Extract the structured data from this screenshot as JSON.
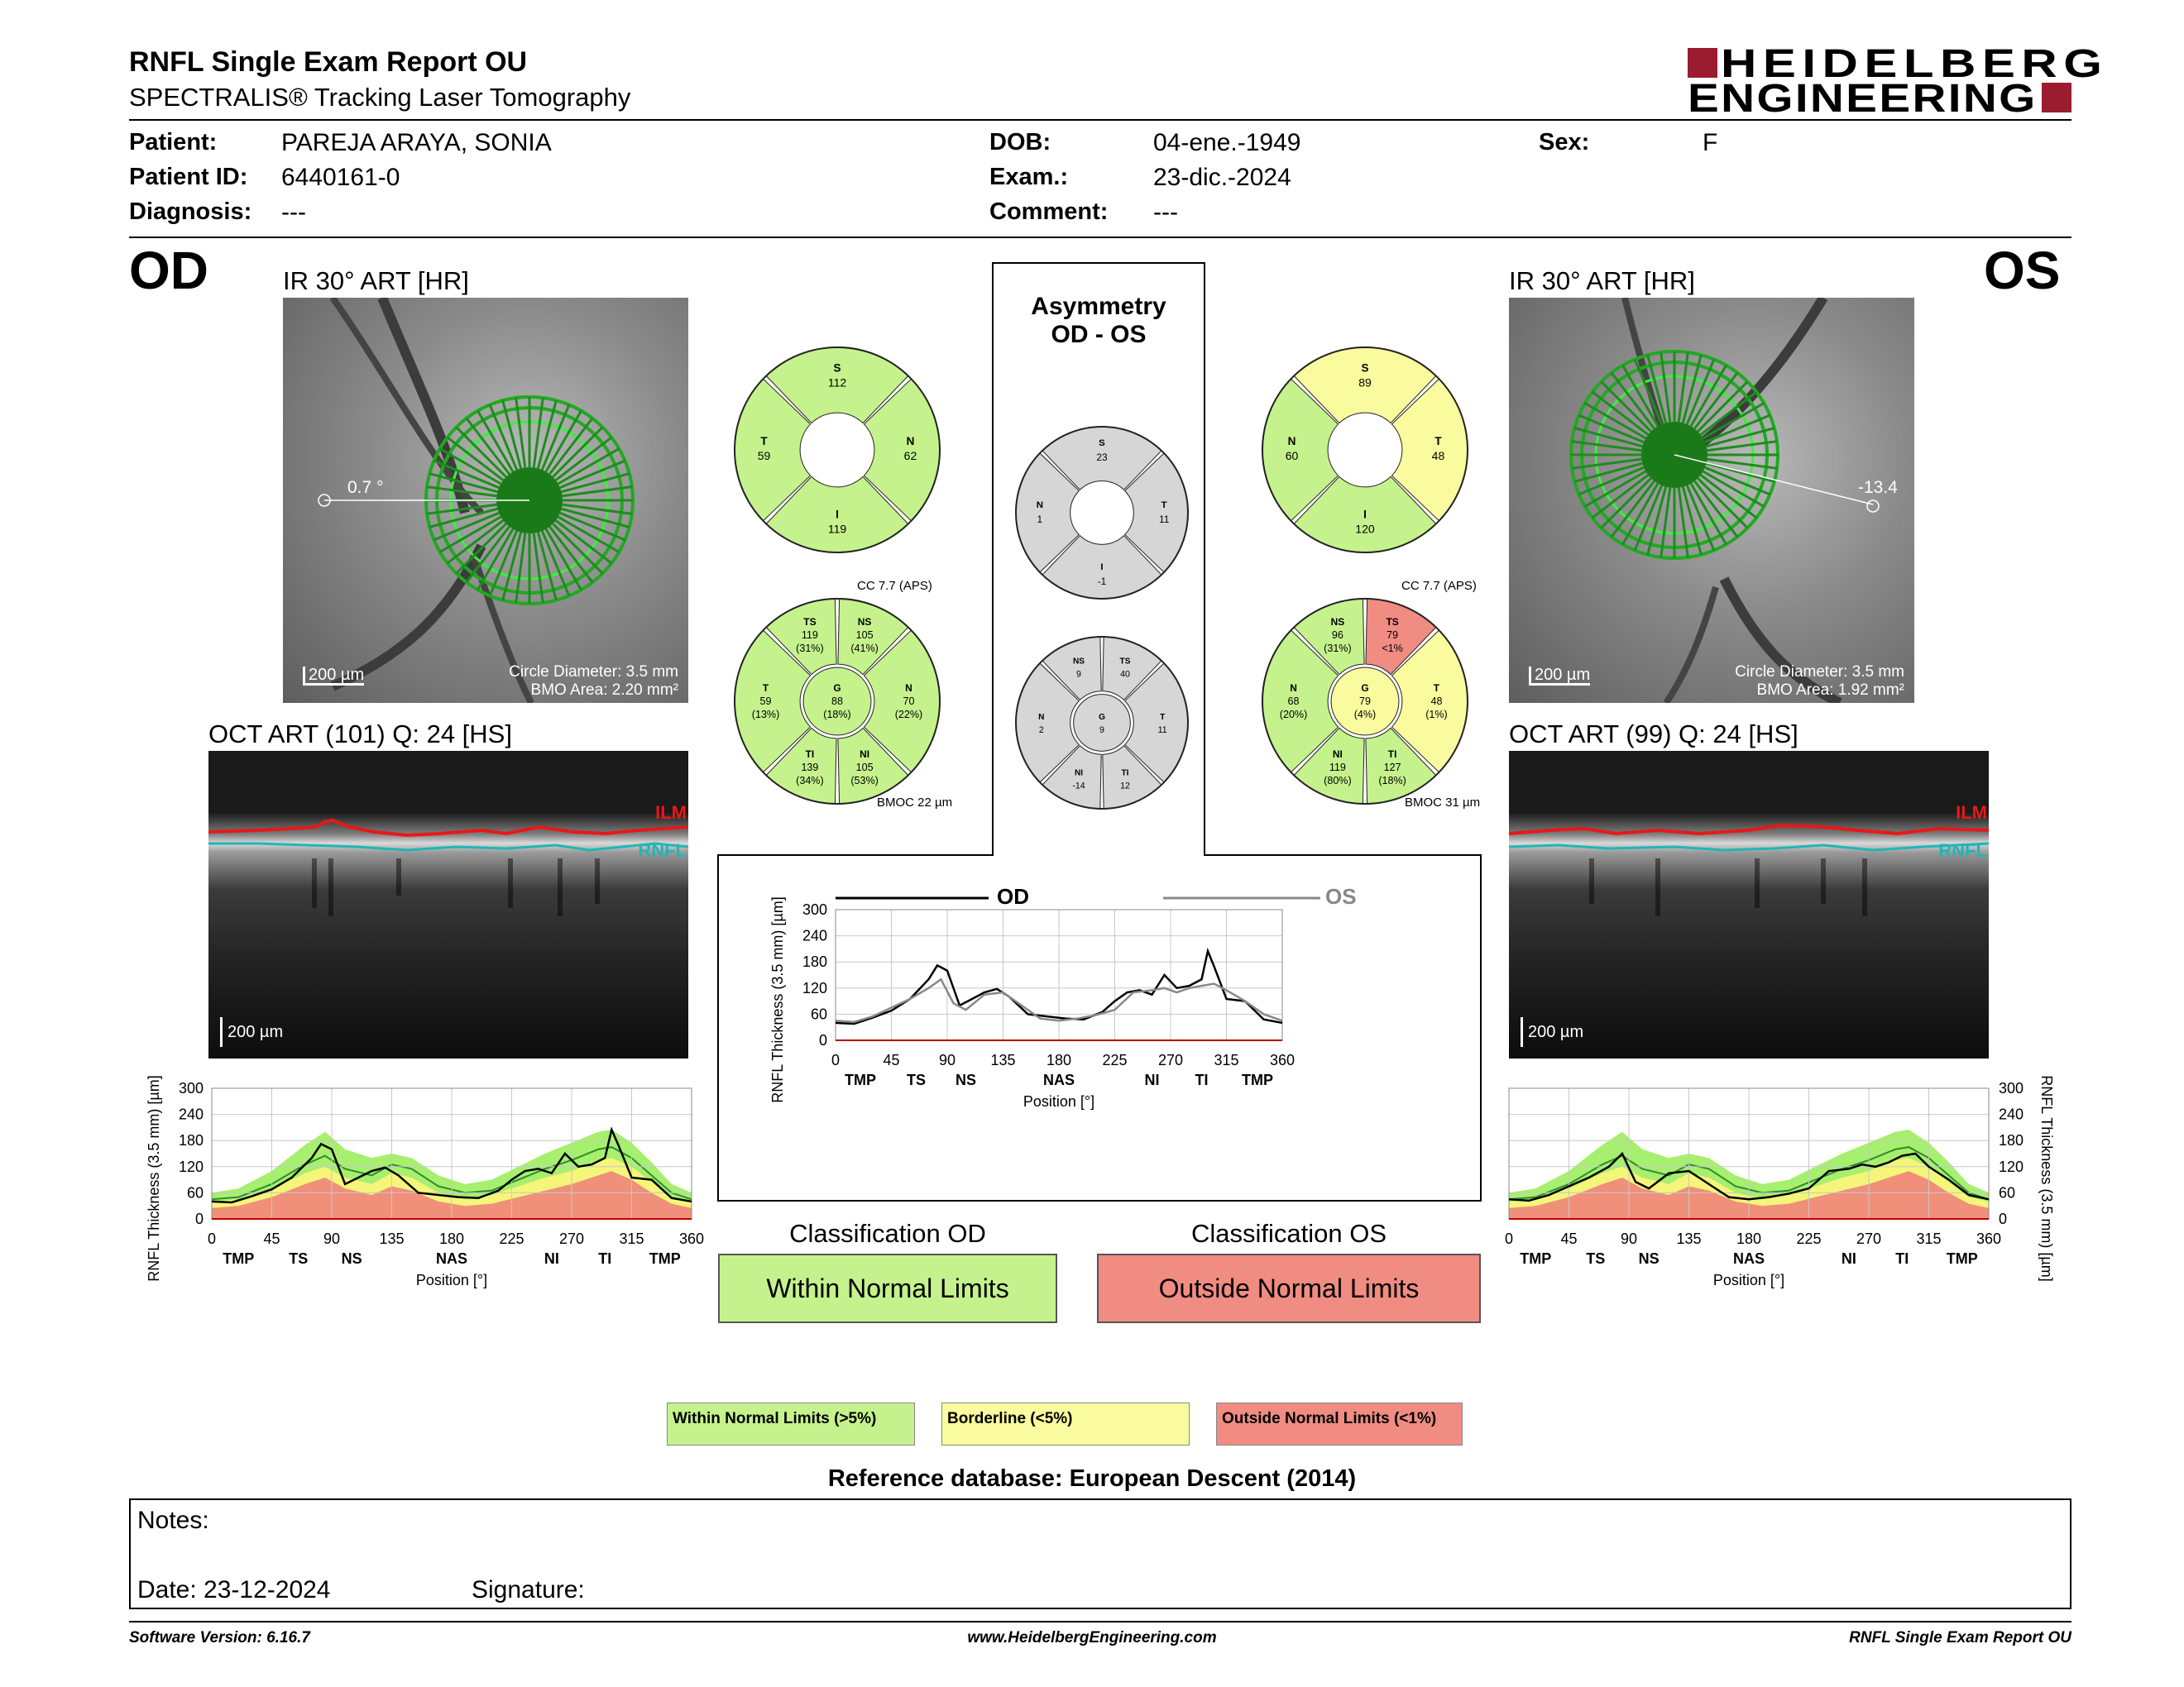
{
  "header": {
    "title": "RNFL Single Exam Report OU",
    "subtitle": "SPECTRALIS® Tracking Laser Tomography",
    "logo_line1": "HEIDELBERG",
    "logo_line2": "ENGINEERING"
  },
  "patient": {
    "patient_label": "Patient:",
    "patient_value": "PAREJA ARAYA, SONIA",
    "id_label": "Patient ID:",
    "id_value": "6440161-0",
    "diagnosis_label": "Diagnosis:",
    "diagnosis_value": "---",
    "dob_label": "DOB:",
    "dob_value": "04-ene.-1949",
    "exam_label": "Exam.:",
    "exam_value": "23-dic.-2024",
    "comment_label": "Comment:",
    "comment_value": "---",
    "sex_label": "Sex:",
    "sex_value": "F"
  },
  "od": {
    "eye_label": "OD",
    "ir_title": "IR 30° ART [HR]",
    "angle": "0.7 °",
    "scale": "200 µm",
    "circle_diameter": "Circle Diameter: 3.5 mm",
    "bmo_area": "BMO Area: 2.20 mm²",
    "oct_title": "OCT ART (101) Q: 24 [HS]",
    "oct_scale": "200 µm",
    "ilm": "ILM",
    "rnfl": "RNFL",
    "classification_title": "Classification OD",
    "classification": "Within Normal Limits",
    "classification_color": "#c5f28c",
    "wheel6_cc": "CC 7.7 (APS)",
    "wheel6_bmoc": "BMOC 22 µm",
    "wheel4": {
      "S": {
        "label": "S",
        "value": "112",
        "color": "#c5f28c"
      },
      "N": {
        "label": "N",
        "value": "62",
        "color": "#c5f28c"
      },
      "I": {
        "label": "I",
        "value": "119",
        "color": "#c5f28c"
      },
      "T": {
        "label": "T",
        "value": "59",
        "color": "#c5f28c"
      }
    },
    "wheel6": {
      "TS": {
        "label": "TS",
        "value": "119",
        "pct": "(31%)",
        "color": "#c5f28c"
      },
      "NS": {
        "label": "NS",
        "value": "105",
        "pct": "(41%)",
        "color": "#c5f28c"
      },
      "N": {
        "label": "N",
        "value": "70",
        "pct": "(22%)",
        "color": "#c5f28c"
      },
      "NI": {
        "label": "NI",
        "value": "105",
        "pct": "(53%)",
        "color": "#c5f28c"
      },
      "TI": {
        "label": "TI",
        "value": "139",
        "pct": "(34%)",
        "color": "#c5f28c"
      },
      "T": {
        "label": "T",
        "value": "59",
        "pct": "(13%)",
        "color": "#c5f28c"
      },
      "G": {
        "label": "G",
        "value": "88",
        "pct": "(18%)",
        "color": "#c5f28c"
      }
    }
  },
  "os": {
    "eye_label": "OS",
    "ir_title": "IR 30° ART [HR]",
    "angle": "-13.4",
    "scale": "200 µm",
    "circle_diameter": "Circle Diameter: 3.5 mm",
    "bmo_area": "BMO Area: 1.92 mm²",
    "oct_title": "OCT ART (99) Q: 24 [HS]",
    "oct_scale": "200 µm",
    "ilm": "ILM",
    "rnfl": "RNFL",
    "classification_title": "Classification OS",
    "classification": "Outside Normal Limits",
    "classification_color": "#f08c82",
    "wheel6_cc": "CC 7.7 (APS)",
    "wheel6_bmoc": "BMOC 31 µm",
    "wheel4": {
      "S": {
        "label": "S",
        "value": "89",
        "color": "#fafa9e"
      },
      "T": {
        "label": "T",
        "value": "48",
        "color": "#fafa9e"
      },
      "I": {
        "label": "I",
        "value": "120",
        "color": "#c5f28c"
      },
      "N": {
        "label": "N",
        "value": "60",
        "color": "#c5f28c"
      }
    },
    "wheel6": {
      "NS": {
        "label": "NS",
        "value": "96",
        "pct": "(31%)",
        "color": "#c5f28c"
      },
      "TS": {
        "label": "TS",
        "value": "79",
        "pct": "<1%",
        "color": "#f08c82"
      },
      "T": {
        "label": "T",
        "value": "48",
        "pct": "(1%)",
        "color": "#fafa9e"
      },
      "TI": {
        "label": "TI",
        "value": "127",
        "pct": "(18%)",
        "color": "#c5f28c"
      },
      "NI": {
        "label": "NI",
        "value": "119",
        "pct": "(80%)",
        "color": "#c5f28c"
      },
      "N": {
        "label": "N",
        "value": "68",
        "pct": "(20%)",
        "color": "#c5f28c"
      },
      "G": {
        "label": "G",
        "value": "79",
        "pct": "(4%)",
        "color": "#fafa9e"
      }
    }
  },
  "asymmetry": {
    "title_line1": "Asymmetry",
    "title_line2": "OD - OS",
    "wheel4": {
      "S": {
        "label": "S",
        "value": "23"
      },
      "T": {
        "label": "T",
        "value": "11"
      },
      "I": {
        "label": "I",
        "value": "-1"
      },
      "N": {
        "label": "N",
        "value": "1"
      }
    },
    "wheel6": {
      "NS": {
        "label": "NS",
        "value": "9"
      },
      "TS": {
        "label": "TS",
        "value": "40"
      },
      "T": {
        "label": "T",
        "value": "11"
      },
      "TI": {
        "label": "TI",
        "value": "12"
      },
      "NI": {
        "label": "NI",
        "value": "-14"
      },
      "N": {
        "label": "N",
        "value": "2"
      },
      "G": {
        "label": "G",
        "value": "9"
      }
    },
    "legend_od": "OD",
    "legend_os": "OS"
  },
  "chart_data": [
    {
      "type": "line",
      "id": "asymmetry",
      "xlabel": "Position [°]",
      "ylabel": "RNFL Thickness (3.5 mm) [µm]",
      "xlim": [
        0,
        360
      ],
      "ylim": [
        0,
        300
      ],
      "xticks": [
        0,
        45,
        90,
        135,
        180,
        225,
        270,
        315,
        360
      ],
      "yticks": [
        0,
        60,
        120,
        180,
        240,
        300
      ],
      "sectors": [
        {
          "label": "TMP",
          "x": 20
        },
        {
          "label": "TS",
          "x": 65
        },
        {
          "label": "NS",
          "x": 105
        },
        {
          "label": "NAS",
          "x": 180
        },
        {
          "label": "NI",
          "x": 255
        },
        {
          "label": "TI",
          "x": 295
        },
        {
          "label": "TMP",
          "x": 340
        }
      ],
      "grid": true,
      "series": [
        {
          "name": "OD",
          "color": "#000000",
          "x": [
            0,
            15,
            30,
            45,
            60,
            75,
            82,
            90,
            100,
            110,
            120,
            130,
            140,
            155,
            170,
            185,
            200,
            215,
            225,
            235,
            245,
            255,
            265,
            275,
            285,
            295,
            300,
            305,
            315,
            330,
            345,
            360
          ],
          "y": [
            40,
            38,
            52,
            68,
            95,
            140,
            172,
            160,
            80,
            95,
            110,
            118,
            100,
            60,
            55,
            50,
            48,
            65,
            90,
            110,
            115,
            105,
            150,
            120,
            125,
            140,
            205,
            170,
            95,
            90,
            48,
            40
          ]
        },
        {
          "name": "OS",
          "color": "#888888",
          "x": [
            0,
            15,
            30,
            45,
            60,
            75,
            85,
            95,
            105,
            120,
            135,
            150,
            165,
            180,
            195,
            210,
            225,
            240,
            255,
            265,
            275,
            285,
            295,
            305,
            315,
            330,
            345,
            360
          ],
          "y": [
            45,
            42,
            55,
            75,
            95,
            120,
            140,
            85,
            70,
            105,
            110,
            80,
            50,
            45,
            50,
            58,
            70,
            110,
            115,
            120,
            110,
            120,
            125,
            130,
            115,
            90,
            60,
            45
          ]
        }
      ]
    },
    {
      "type": "line",
      "id": "od_tsnit",
      "xlabel": "Position [°]",
      "ylabel": "RNFL Thickness (3.5 mm) [µm]",
      "xlim": [
        0,
        360
      ],
      "ylim": [
        0,
        300
      ],
      "xticks": [
        0,
        45,
        90,
        135,
        180,
        225,
        270,
        315,
        360
      ],
      "yticks": [
        0,
        60,
        120,
        180,
        240,
        300
      ],
      "sectors": [
        {
          "label": "TMP",
          "x": 20
        },
        {
          "label": "TS",
          "x": 65
        },
        {
          "label": "NS",
          "x": 105
        },
        {
          "label": "NAS",
          "x": 180
        },
        {
          "label": "NI",
          "x": 255
        },
        {
          "label": "TI",
          "x": 295
        },
        {
          "label": "TMP",
          "x": 340
        }
      ],
      "normal_bands": {
        "x": [
          0,
          20,
          45,
          70,
          85,
          100,
          120,
          135,
          150,
          170,
          190,
          210,
          230,
          250,
          270,
          290,
          300,
          315,
          330,
          345,
          360
        ],
        "red_top": [
          25,
          30,
          50,
          80,
          95,
          70,
          55,
          75,
          65,
          40,
          30,
          35,
          50,
          65,
          80,
          100,
          110,
          90,
          60,
          35,
          25
        ],
        "yellow_top": [
          40,
          45,
          70,
          105,
          120,
          95,
          80,
          105,
          95,
          60,
          45,
          55,
          75,
          95,
          110,
          135,
          140,
          120,
          85,
          50,
          40
        ],
        "green_top": [
          60,
          70,
          110,
          170,
          200,
          160,
          140,
          150,
          140,
          100,
          80,
          90,
          120,
          150,
          175,
          200,
          205,
          175,
          130,
          80,
          60
        ],
        "mean": [
          45,
          50,
          80,
          125,
          145,
          115,
          100,
          125,
          115,
          75,
          60,
          65,
          90,
          115,
          135,
          160,
          165,
          140,
          100,
          60,
          45
        ]
      },
      "series": [
        {
          "name": "OD",
          "color": "#000000",
          "x": [
            0,
            15,
            30,
            45,
            60,
            75,
            82,
            90,
            100,
            110,
            120,
            130,
            140,
            155,
            170,
            185,
            200,
            215,
            225,
            235,
            245,
            255,
            265,
            275,
            285,
            295,
            300,
            305,
            315,
            330,
            345,
            360
          ],
          "y": [
            40,
            38,
            52,
            68,
            95,
            140,
            172,
            160,
            80,
            95,
            110,
            118,
            100,
            60,
            55,
            50,
            48,
            65,
            90,
            110,
            115,
            105,
            150,
            120,
            125,
            140,
            205,
            170,
            95,
            90,
            48,
            40
          ]
        }
      ]
    },
    {
      "type": "line",
      "id": "os_tsnit",
      "xlabel": "Position [°]",
      "ylabel": "RNFL Thickness (3.5 mm) [µm]",
      "xlim": [
        0,
        360
      ],
      "ylim": [
        0,
        300
      ],
      "xticks": [
        0,
        45,
        90,
        135,
        180,
        225,
        270,
        315,
        360
      ],
      "yticks": [
        0,
        60,
        120,
        180,
        240,
        300
      ],
      "sectors": [
        {
          "label": "TMP",
          "x": 20
        },
        {
          "label": "TS",
          "x": 65
        },
        {
          "label": "NS",
          "x": 105
        },
        {
          "label": "NAS",
          "x": 180
        },
        {
          "label": "NI",
          "x": 255
        },
        {
          "label": "TI",
          "x": 295
        },
        {
          "label": "TMP",
          "x": 340
        }
      ],
      "normal_bands": {
        "x": [
          0,
          20,
          45,
          70,
          85,
          100,
          120,
          135,
          150,
          170,
          190,
          210,
          230,
          250,
          270,
          290,
          300,
          315,
          330,
          345,
          360
        ],
        "red_top": [
          25,
          30,
          50,
          80,
          95,
          70,
          55,
          75,
          65,
          40,
          30,
          35,
          50,
          65,
          80,
          100,
          110,
          90,
          60,
          35,
          25
        ],
        "yellow_top": [
          40,
          45,
          70,
          105,
          120,
          95,
          80,
          105,
          95,
          60,
          45,
          55,
          75,
          95,
          110,
          135,
          140,
          120,
          85,
          50,
          40
        ],
        "green_top": [
          60,
          70,
          110,
          170,
          200,
          160,
          140,
          150,
          140,
          100,
          80,
          90,
          120,
          150,
          175,
          200,
          205,
          175,
          130,
          80,
          60
        ],
        "mean": [
          45,
          50,
          80,
          125,
          145,
          115,
          100,
          125,
          115,
          75,
          60,
          65,
          90,
          115,
          135,
          160,
          165,
          140,
          100,
          60,
          45
        ]
      },
      "series": [
        {
          "name": "OS",
          "color": "#000000",
          "x": [
            0,
            15,
            30,
            45,
            60,
            75,
            85,
            95,
            105,
            120,
            135,
            150,
            165,
            180,
            195,
            210,
            225,
            240,
            255,
            265,
            275,
            285,
            295,
            305,
            315,
            330,
            345,
            360
          ],
          "y": [
            45,
            42,
            55,
            75,
            95,
            120,
            150,
            85,
            70,
            105,
            110,
            80,
            50,
            45,
            50,
            58,
            70,
            110,
            115,
            125,
            120,
            130,
            145,
            150,
            120,
            90,
            55,
            45
          ]
        }
      ]
    }
  ],
  "legend": {
    "within": "Within Normal Limits (>5%)",
    "borderline": "Borderline (<5%)",
    "outside": "Outside Normal Limits (<1%)",
    "within_color": "#c5f28c",
    "borderline_color": "#fafa9e",
    "outside_color": "#f08c82"
  },
  "reference": "Reference database: European Descent (2014)",
  "notes": {
    "notes_label": "Notes:",
    "date_label": "Date: 23-12-2024",
    "signature_label": "Signature:"
  },
  "footer": {
    "software": "Software Version: 6.16.7",
    "website": "www.HeidelbergEngineering.com",
    "report": "RNFL Single Exam Report OU"
  }
}
